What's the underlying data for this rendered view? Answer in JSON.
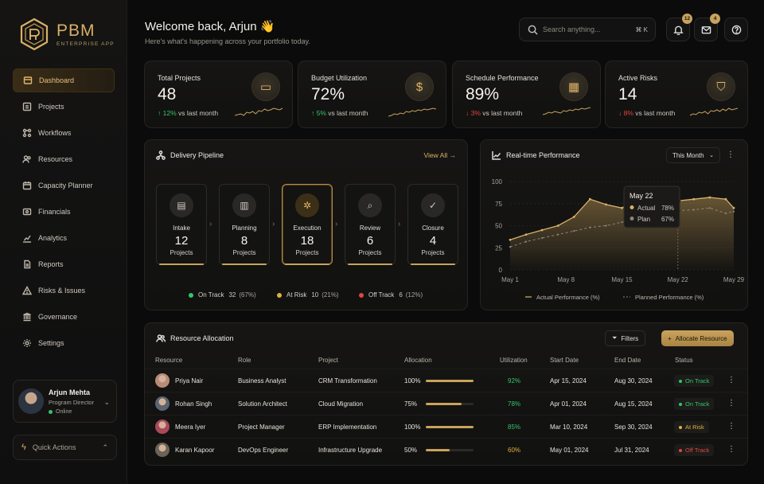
{
  "brand": {
    "title": "PBM",
    "subtitle": "ENTERPRISE APP"
  },
  "nav": [
    {
      "label": "Dashboard",
      "icon": "dashboard-icon",
      "active": true
    },
    {
      "label": "Projects",
      "icon": "projects-icon"
    },
    {
      "label": "Workflows",
      "icon": "workflows-icon"
    },
    {
      "label": "Resources",
      "icon": "resources-icon"
    },
    {
      "label": "Capacity Planner",
      "icon": "calendar-icon"
    },
    {
      "label": "Financials",
      "icon": "financials-icon"
    },
    {
      "label": "Analytics",
      "icon": "analytics-icon"
    },
    {
      "label": "Reports",
      "icon": "reports-icon"
    },
    {
      "label": "Risks & Issues",
      "icon": "warning-icon"
    },
    {
      "label": "Governance",
      "icon": "governance-icon"
    },
    {
      "label": "Settings",
      "icon": "gear-icon"
    }
  ],
  "user": {
    "name": "Arjun Mehta",
    "role": "Program Director",
    "status": "Online"
  },
  "quick_actions": "Quick Actions",
  "header": {
    "welcome": "Welcome back, Arjun 👋",
    "subtitle": "Here's what's happening across your portfolio today.",
    "search_placeholder": "Search anything...",
    "search_shortcut": "⌘ K",
    "notifications": "12",
    "messages": "4"
  },
  "kpis": [
    {
      "title": "Total Projects",
      "value": "48",
      "delta": "12%",
      "direction": "up",
      "suffix": "vs last month",
      "icon": "folder-icon",
      "glyph": "▭"
    },
    {
      "title": "Budget Utilization",
      "value": "72%",
      "delta": "5%",
      "direction": "up",
      "suffix": "vs last month",
      "icon": "dollar-icon",
      "glyph": "$"
    },
    {
      "title": "Schedule Performance",
      "value": "89%",
      "delta": "3%",
      "direction": "down",
      "suffix": "vs last month",
      "icon": "calendar-icon",
      "glyph": "▦"
    },
    {
      "title": "Active Risks",
      "value": "14",
      "delta": "8%",
      "direction": "down",
      "suffix": "vs last month",
      "icon": "shield-icon",
      "glyph": "⛉"
    }
  ],
  "pipeline": {
    "title": "Delivery Pipeline",
    "view_all": "View All",
    "stages": [
      {
        "name": "Intake",
        "count": "12",
        "unit": "Projects",
        "icon": "document-icon",
        "glyph": "▤"
      },
      {
        "name": "Planning",
        "count": "8",
        "unit": "Projects",
        "icon": "clipboard-icon",
        "glyph": "▥"
      },
      {
        "name": "Execution",
        "count": "18",
        "unit": "Projects",
        "icon": "gear-icon",
        "glyph": "✲",
        "active": true
      },
      {
        "name": "Review",
        "count": "6",
        "unit": "Projects",
        "icon": "search-icon",
        "glyph": "⌕"
      },
      {
        "name": "Closure",
        "count": "4",
        "unit": "Projects",
        "icon": "check-circle-icon",
        "glyph": "✓"
      }
    ],
    "legend": [
      {
        "label": "On Track",
        "value": "32",
        "pct": "(67%)",
        "color": "#35c46a"
      },
      {
        "label": "At Risk",
        "value": "10",
        "pct": "(21%)",
        "color": "#e0b040"
      },
      {
        "label": "Off Track",
        "value": "6",
        "pct": "(12%)",
        "color": "#e0473d"
      }
    ]
  },
  "performance": {
    "title": "Real-time Performance",
    "range": "This Month",
    "tooltip": {
      "date": "May 22",
      "actual_label": "Actual",
      "actual_value": "78%",
      "plan_label": "Plan",
      "plan_value": "67%"
    },
    "legend_actual": "Actual Performance (%)",
    "legend_planned": "Planned Performance (%)"
  },
  "chart_data": {
    "type": "area",
    "title": "Real-time Performance",
    "x_ticks": [
      "May 1",
      "May 8",
      "May 15",
      "May 22",
      "May 29"
    ],
    "y_ticks": [
      "100",
      "75",
      "50",
      "25",
      "0"
    ],
    "ylim": [
      0,
      100
    ],
    "series": [
      {
        "name": "Actual Performance (%)",
        "color": "#d9b068",
        "style": "solid",
        "x": [
          1,
          3,
          5,
          7,
          9,
          11,
          13,
          15,
          17,
          19,
          20,
          22,
          24,
          26,
          28,
          29
        ],
        "values": [
          34,
          40,
          45,
          50,
          60,
          80,
          74,
          70,
          82,
          76,
          70,
          78,
          80,
          82,
          80,
          70
        ]
      },
      {
        "name": "Planned Performance (%)",
        "color": "#8a857c",
        "style": "dashed",
        "x": [
          1,
          3,
          5,
          7,
          9,
          11,
          13,
          15,
          17,
          19,
          20,
          22,
          24,
          26,
          28,
          29
        ],
        "values": [
          26,
          32,
          36,
          40,
          44,
          48,
          50,
          54,
          56,
          58,
          60,
          67,
          68,
          70,
          64,
          66
        ]
      }
    ]
  },
  "resources": {
    "title": "Resource Allocation",
    "filters": "Filters",
    "allocate": "Allocate Resource",
    "columns": [
      "Resource",
      "Role",
      "Project",
      "Allocation",
      "Utilization",
      "Start Date",
      "End Date",
      "Status"
    ],
    "rows": [
      {
        "name": "Priya Nair",
        "role": "Business Analyst",
        "project": "CRM Transformation",
        "allocation": "100%",
        "alloc_fill": 1.0,
        "utilization": "92%",
        "util_color": "#35c46a",
        "start": "Apr 15, 2024",
        "end": "Aug 30, 2024",
        "status": "On Track",
        "status_color": "#35c46a",
        "avatar": "#b98a76"
      },
      {
        "name": "Rohan Singh",
        "role": "Solution Architect",
        "project": "Cloud Migration",
        "allocation": "75%",
        "alloc_fill": 0.75,
        "utilization": "78%",
        "util_color": "#35c46a",
        "start": "Apr 01, 2024",
        "end": "Aug 15, 2024",
        "status": "On Track",
        "status_color": "#35c46a",
        "avatar": "#5b6470"
      },
      {
        "name": "Meera Iyer",
        "role": "Project Manager",
        "project": "ERP Implementation",
        "allocation": "100%",
        "alloc_fill": 1.0,
        "utilization": "85%",
        "util_color": "#35c46a",
        "start": "Mar 10, 2024",
        "end": "Sep 30, 2024",
        "status": "At Risk",
        "status_color": "#e0b040",
        "avatar": "#a84a5a"
      },
      {
        "name": "Karan Kapoor",
        "role": "DevOps Engineer",
        "project": "Infrastructure Upgrade",
        "allocation": "50%",
        "alloc_fill": 0.5,
        "utilization": "60%",
        "util_color": "#e0b040",
        "start": "May 01, 2024",
        "end": "Jul 31, 2024",
        "status": "Off Track",
        "status_color": "#e0473d",
        "avatar": "#6b6358"
      }
    ]
  }
}
